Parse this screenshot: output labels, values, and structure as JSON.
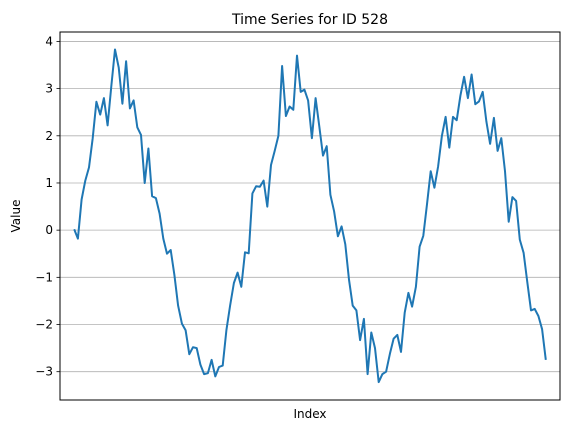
{
  "chart_data": {
    "type": "line",
    "title": "Time Series for ID 528",
    "xlabel": "Index",
    "ylabel": "Value",
    "ylim": [
      -3.6,
      4.2
    ],
    "xlim": [
      -6,
      206
    ],
    "grid": {
      "y": true,
      "x": false
    },
    "yticks": [
      4,
      3,
      2,
      1,
      0,
      -1,
      -2,
      -3
    ],
    "ytick_labels": [
      "4",
      "3",
      "2",
      "1",
      "0",
      "−1",
      "−2",
      "−3"
    ],
    "line_color": "#1f77b4",
    "series": [
      {
        "values": [
          0.02,
          -0.18,
          0.65,
          1.05,
          1.33,
          1.95,
          2.72,
          2.45,
          2.8,
          2.22,
          3.05,
          3.83,
          3.45,
          2.68,
          3.58,
          2.58,
          2.75,
          2.18,
          2.02,
          1.0,
          1.73,
          0.72,
          0.68,
          0.35,
          -0.18,
          -0.5,
          -0.42,
          -0.95,
          -1.6,
          -1.98,
          -2.12,
          -2.63,
          -2.48,
          -2.5,
          -2.85,
          -3.05,
          -3.03,
          -2.75,
          -3.1,
          -2.9,
          -2.87,
          -2.12,
          -1.6,
          -1.12,
          -0.9,
          -1.2,
          -0.47,
          -0.49,
          0.78,
          0.93,
          0.92,
          1.05,
          0.5,
          1.38,
          1.68,
          2.0,
          3.48,
          2.42,
          2.62,
          2.55,
          3.7,
          2.93,
          2.98,
          2.75,
          1.95,
          2.8,
          2.2,
          1.58,
          1.78,
          0.75,
          0.4,
          -0.13,
          0.08,
          -0.3,
          -1.05,
          -1.6,
          -1.7,
          -2.33,
          -1.88,
          -3.05,
          -2.17,
          -2.5,
          -3.22,
          -3.05,
          -3.0,
          -2.62,
          -2.3,
          -2.22,
          -2.58,
          -1.75,
          -1.33,
          -1.62,
          -1.2,
          -0.35,
          -0.12,
          0.55,
          1.25,
          0.9,
          1.35,
          2.0,
          2.4,
          1.75,
          2.4,
          2.33,
          2.85,
          3.25,
          2.8,
          3.3,
          2.67,
          2.73,
          2.93,
          2.3,
          1.83,
          2.38,
          1.68,
          1.95,
          1.25,
          0.18,
          0.7,
          0.62,
          -0.2,
          -0.48,
          -1.1,
          -1.7,
          -1.67,
          -1.82,
          -2.1,
          -2.75
        ]
      }
    ]
  }
}
